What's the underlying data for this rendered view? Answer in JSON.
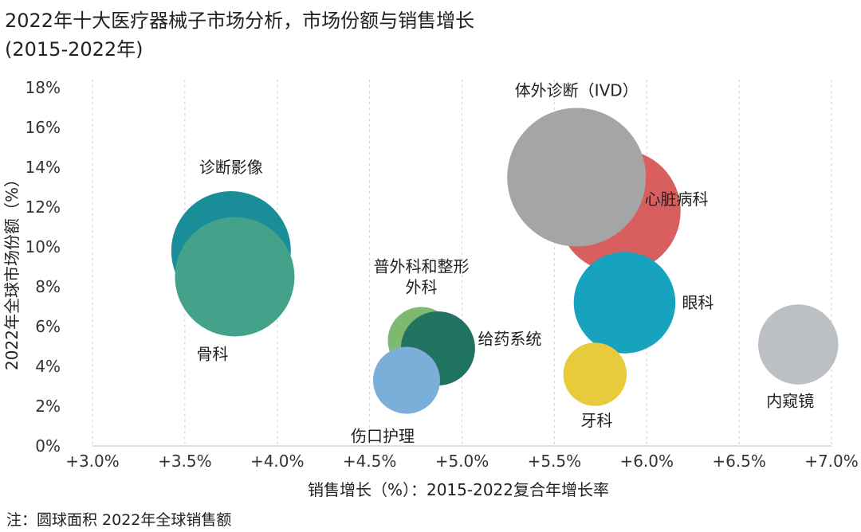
{
  "title_line1": "2022年十大医疗器械子市场分析，市场份额与销售增长",
  "title_line2": "(2015-2022年)",
  "note": "注：圆球面积 2022年全球销售额",
  "chart_data": {
    "type": "scatter",
    "xlabel": "销售增长（%）：2015-2022复合年增长率",
    "ylabel": "2022年全球市场份额（%）",
    "xlim": [
      3.0,
      7.0
    ],
    "ylim": [
      0,
      18
    ],
    "x_ticks": [
      "+3.0%",
      "+3.5%",
      "+4.0%",
      "+4.5%",
      "+5.0%",
      "+5.5%",
      "+6.0%",
      "+6.5%",
      "+7.0%"
    ],
    "y_ticks": [
      "0%",
      "2%",
      "4%",
      "6%",
      "8%",
      "10%",
      "12%",
      "14%",
      "16%",
      "18%"
    ],
    "grid": "vertical dashed",
    "series": [
      {
        "name": "诊断影像",
        "x": 3.75,
        "y": 9.8,
        "rel_size": 1.0,
        "color": "#1a8e98"
      },
      {
        "name": "心脏病科",
        "x": 5.85,
        "y": 11.8,
        "rel_size": 1.03,
        "color": "#d95f5f"
      },
      {
        "name": "体外诊断（IVD）",
        "x": 5.62,
        "y": 13.5,
        "rel_size": 1.16,
        "color": "#a5a5a5"
      },
      {
        "name": "骨科",
        "x": 3.77,
        "y": 8.5,
        "rel_size": 1.0,
        "color": "#45a28a"
      },
      {
        "name": "普外科和整形外科",
        "x": 4.78,
        "y": 5.3,
        "rel_size": 0.56,
        "color": "#7fb86f"
      },
      {
        "name": "给药系统",
        "x": 4.87,
        "y": 4.9,
        "rel_size": 0.62,
        "color": "#1f7360"
      },
      {
        "name": "伤口护理",
        "x": 4.7,
        "y": 3.3,
        "rel_size": 0.56,
        "color": "#7bafd9"
      },
      {
        "name": "眼科",
        "x": 5.88,
        "y": 7.2,
        "rel_size": 0.85,
        "color": "#17a2be"
      },
      {
        "name": "牙科",
        "x": 5.72,
        "y": 3.6,
        "rel_size": 0.53,
        "color": "#e8cb3a"
      },
      {
        "name": "内窥镜",
        "x": 6.82,
        "y": 5.1,
        "rel_size": 0.67,
        "color": "#bcc0c4"
      }
    ]
  }
}
